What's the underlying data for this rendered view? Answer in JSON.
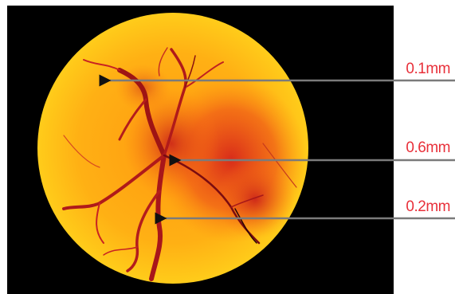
{
  "image": {
    "subject": "circular specimen with branching dark red vessel pattern on yellow-orange background",
    "background_color": "#000000",
    "outer_color": "#ffffff",
    "specimen_colors": [
      "#ffcc1a",
      "#ff9a10",
      "#ee4a18",
      "#c81e1a",
      "#8c0f12"
    ]
  },
  "annotations": [
    {
      "label": "0.1mm",
      "label_color": "#e8303a",
      "arrow_color": "#7b7b7b"
    },
    {
      "label": "0.6mm",
      "label_color": "#e8303a",
      "arrow_color": "#7b7b7b"
    },
    {
      "label": "0.2mm",
      "label_color": "#e8303a",
      "arrow_color": "#7b7b7b"
    }
  ]
}
